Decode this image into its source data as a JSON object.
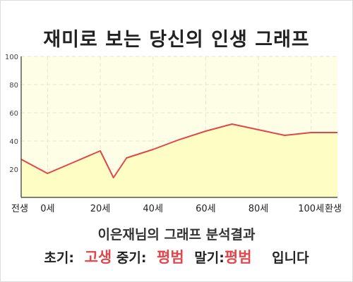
{
  "title": "재미로 보는 당신의 인생 그래프",
  "subtitle": "이은재님의 그래프 분석결과",
  "summary": {
    "early_label": "초기:",
    "early_value": "고생",
    "mid_label": "중기:",
    "mid_value": "평범",
    "late_label": "말기:",
    "late_value": "평범",
    "suffix": "입니다"
  },
  "colors": {
    "plot_background": "#fefee6",
    "area_fill": "#fdfdc4",
    "line": "#e0474c",
    "grid": "#e6e6d0"
  },
  "chart_data": {
    "type": "area",
    "x": [
      -10,
      0,
      10,
      20,
      25,
      30,
      40,
      50,
      60,
      70,
      80,
      90,
      100
    ],
    "values": [
      27,
      17,
      25,
      33,
      14,
      28,
      34,
      41,
      47,
      52,
      48,
      44,
      46
    ],
    "x_ticks": [
      {
        "value": -10,
        "label": "전생"
      },
      {
        "value": 0,
        "label": "0세"
      },
      {
        "value": 20,
        "label": "20세"
      },
      {
        "value": 40,
        "label": "40세"
      },
      {
        "value": 60,
        "label": "60세"
      },
      {
        "value": 80,
        "label": "80세"
      },
      {
        "value": 100,
        "label": "100세"
      },
      {
        "value": 110,
        "label": "환생"
      }
    ],
    "y_ticks": [
      20,
      40,
      60,
      80,
      100
    ],
    "xlim": [
      -10,
      110
    ],
    "ylim": [
      0,
      100
    ],
    "grid": true
  }
}
